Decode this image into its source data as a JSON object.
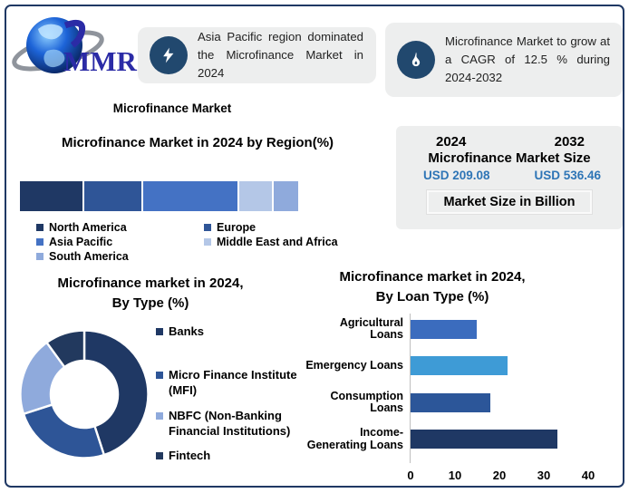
{
  "logo": {
    "text": "MMR"
  },
  "callouts": [
    {
      "icon": "lightning-icon",
      "text": "Asia Pacific region dominated the Microfinance Market in 2024"
    },
    {
      "icon": "flame-icon",
      "text": "Microfinance Market to grow at a CAGR of 12.5 % during 2024-2032"
    }
  ],
  "main_title": "Microfinance Market",
  "market_size_card": {
    "year_left": "2024",
    "year_right": "2032",
    "title": "Microfinance Market Size",
    "value_left": "USD 209.08",
    "value_right": "USD 536.46",
    "value_color": "#2E75B6",
    "footnote": "Market Size in Billion"
  },
  "chart_data": [
    {
      "id": "region",
      "type": "bar",
      "subtype": "stacked-horizontal",
      "title": "Microfinance Market in 2024 by Region(%)",
      "categories": [
        "North America",
        "Europe",
        "Asia Pacific",
        "Middle East and Africa",
        "South America"
      ],
      "values": [
        23,
        21,
        35,
        12,
        9
      ],
      "colors": [
        "#1F3864",
        "#2F5597",
        "#4472C4",
        "#B4C7E7",
        "#8FAADC"
      ],
      "legend_position": "bottom",
      "legend_columns": 2
    },
    {
      "id": "type",
      "type": "pie",
      "subtype": "donut",
      "title": "Microfinance market in 2024, By Type (%)",
      "title_lines": [
        "Microfinance market in 2024,",
        "By Type (%)"
      ],
      "categories": [
        "Banks",
        "Micro Finance Institute (MFI)",
        "NBFC (Non-Banking Financial Institutions)",
        "Fintech"
      ],
      "values": [
        45,
        25,
        20,
        10
      ],
      "colors": [
        "#1F3864",
        "#2E5597",
        "#8FAADC",
        "#22395E"
      ],
      "legend_position": "right",
      "start_angle_deg": 0
    },
    {
      "id": "loan",
      "type": "bar",
      "subtype": "horizontal",
      "title": "Microfinance market in 2024, By Loan Type (%)",
      "title_lines": [
        "Microfinance market in 2024,",
        "By Loan Type (%)"
      ],
      "categories": [
        "Agricultural Loans",
        "Emergency Loans",
        "Consumption Loans",
        "Income-Generating Loans"
      ],
      "values": [
        15,
        22,
        18,
        33
      ],
      "colors": [
        "#3B6CBE",
        "#3E9BD6",
        "#2C5699",
        "#1F3864"
      ],
      "xlim": [
        0,
        40
      ],
      "xticks": [
        0,
        10,
        20,
        30,
        40
      ],
      "grid": false
    }
  ]
}
